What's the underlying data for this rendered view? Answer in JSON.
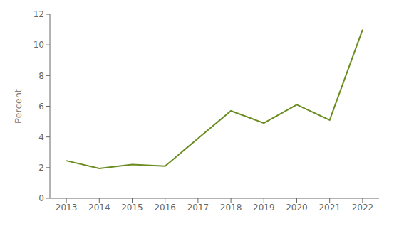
{
  "chart_data": {
    "type": "line",
    "x": [
      2013,
      2014,
      2015,
      2016,
      2017,
      2018,
      2019,
      2020,
      2021,
      2022
    ],
    "values": [
      2.45,
      1.95,
      2.2,
      2.1,
      3.9,
      5.7,
      4.9,
      6.1,
      5.1,
      11.0
    ],
    "color": "#6b8c21",
    "ylabel": "Percent",
    "xlim": [
      2012.5,
      2022.5
    ],
    "xticks": [
      2013,
      2014,
      2015,
      2016,
      2017,
      2018,
      2019,
      2020,
      2021,
      2022
    ],
    "ylim": [
      0,
      12
    ],
    "yticks": [
      0,
      2,
      4,
      6,
      8,
      10,
      12
    ],
    "grid": false
  }
}
